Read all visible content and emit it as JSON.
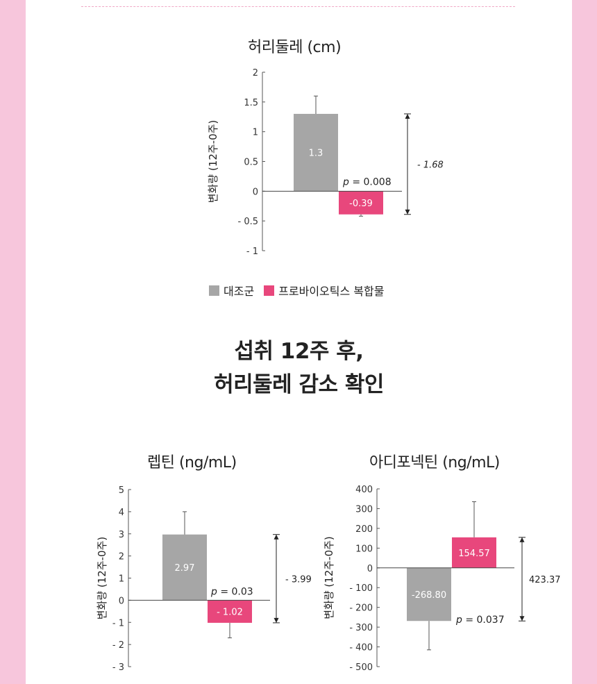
{
  "headline": {
    "line1": "섭취 12주 후,",
    "line2": "허리둘레 감소 확인"
  },
  "legend": {
    "control": "대조군",
    "probiotic": "프로바이오틱스 복합물",
    "control_color": "#a6a6a6",
    "probiotic_color": "#e8477c"
  },
  "chart_data": [
    {
      "type": "bar",
      "title": "허리둘레 (cm)",
      "ylabel": "변화량 (12주-0주)",
      "ylim": [
        -1,
        2
      ],
      "yticks": [
        "2",
        "1.5",
        "1",
        "0.5",
        "0",
        "- 0.5",
        "- 1"
      ],
      "tick_values": [
        2,
        1.5,
        1,
        0.5,
        0,
        -0.5,
        -1
      ],
      "series": [
        {
          "name": "대조군",
          "value": 1.3,
          "label": "1.3",
          "error_high": 1.6,
          "error_low": 1.3
        },
        {
          "name": "프로바이오틱스 복합물",
          "value": -0.39,
          "label": "-0.39",
          "error_high": -0.39,
          "error_low": -0.42
        }
      ],
      "p_prefix": "p",
      "p_text": " = 0.008",
      "difference": "- 1.68"
    },
    {
      "type": "bar",
      "title": "렙틴 (ng/mL)",
      "ylabel": "변화량 (12주-0주)",
      "ylim": [
        -3,
        5
      ],
      "yticks": [
        "5",
        "4",
        "3",
        "2",
        "1",
        "0",
        "- 1",
        "- 2",
        "- 3"
      ],
      "tick_values": [
        5,
        4,
        3,
        2,
        1,
        0,
        -1,
        -2,
        -3
      ],
      "series": [
        {
          "name": "대조군",
          "value": 2.97,
          "label": "2.97",
          "error_high": 4.0,
          "error_low": 2.97
        },
        {
          "name": "프로바이오틱스 복합물",
          "value": -1.02,
          "label": "- 1.02",
          "error_high": -1.02,
          "error_low": -1.7
        }
      ],
      "p_prefix": "p",
      "p_text": " = 0.03",
      "difference": "- 3.99"
    },
    {
      "type": "bar",
      "title": "아디포넥틴 (ng/mL)",
      "ylabel": "변화량 (12주-0주)",
      "ylim": [
        -500,
        400
      ],
      "yticks": [
        "400",
        "300",
        "200",
        "100",
        "0",
        "- 100",
        "- 200",
        "- 300",
        "- 400",
        "- 500"
      ],
      "tick_values": [
        400,
        300,
        200,
        100,
        0,
        -100,
        -200,
        -300,
        -400,
        -500
      ],
      "series": [
        {
          "name": "대조군",
          "value": -268.8,
          "label": "-268.80",
          "error_high": -268.8,
          "error_low": -415
        },
        {
          "name": "프로바이오틱스 복합물",
          "value": 154.57,
          "label": "154.57",
          "error_high": 335,
          "error_low": 154.57
        }
      ],
      "p_prefix": "p",
      "p_text": " = 0.037",
      "difference": "423.37"
    }
  ]
}
